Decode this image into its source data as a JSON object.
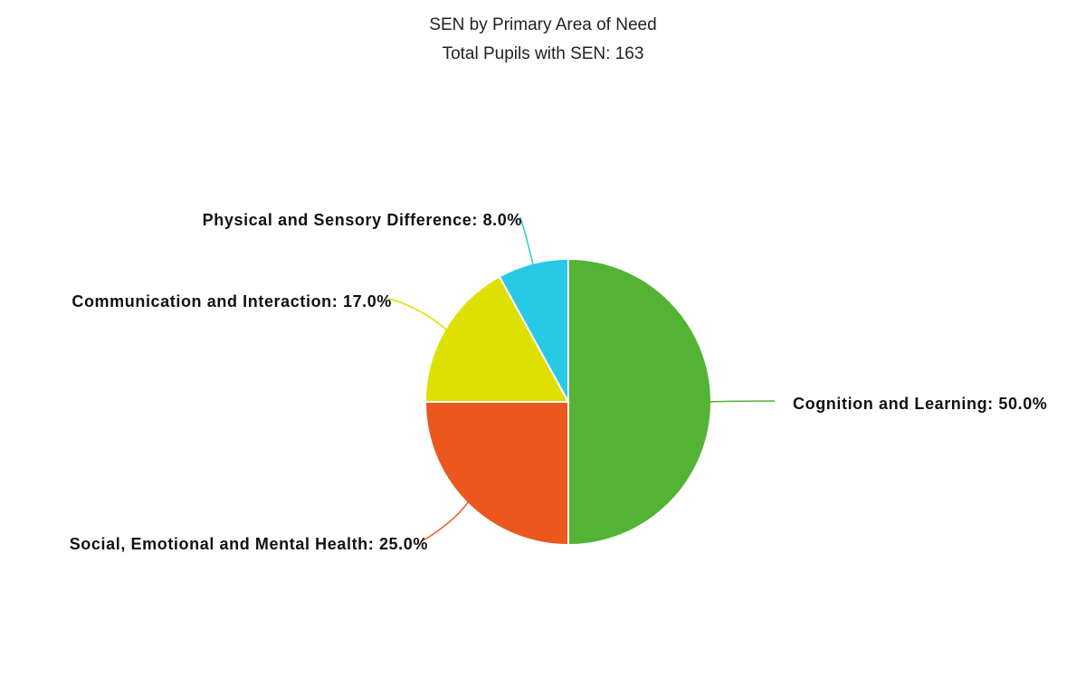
{
  "chart_data": {
    "type": "pie",
    "title": "SEN by Primary Area of Need",
    "subtitle": "Total Pupils with SEN: 163",
    "values": [
      50.0,
      25.0,
      17.0,
      8.0
    ],
    "value_labels": [
      "Cognition and Learning: 50.0%",
      "Social, Emotional and Mental Health: 25.0%",
      "Communication and Interaction: 17.0%",
      "Physical and Sensory Difference: 8.0%"
    ],
    "colors": [
      "#52b335",
      "#eb571c",
      "#dde000",
      "#27c9e6"
    ]
  }
}
